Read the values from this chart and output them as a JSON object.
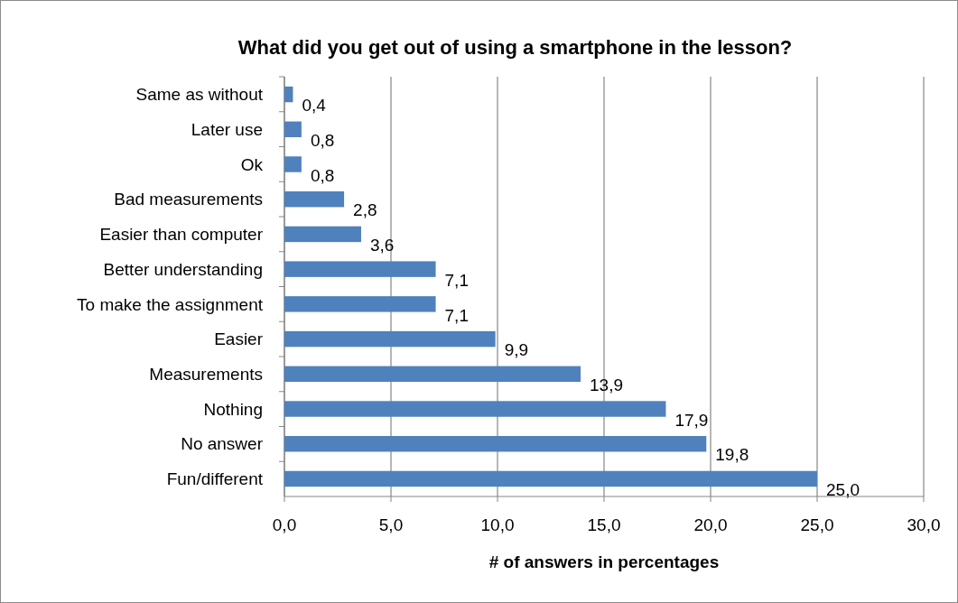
{
  "chart_data": {
    "type": "bar",
    "orientation": "horizontal",
    "title": "What did you get out of using a smartphone in the lesson?",
    "xlabel": "# of answers in percentages",
    "categories": [
      "Same as without",
      "Later use",
      "Ok",
      "Bad measurements",
      "Easier than computer",
      "Better understanding",
      "To make the assignment",
      "Easier",
      "Measurements",
      "Nothing",
      "No answer",
      "Fun/different"
    ],
    "values": [
      0.4,
      0.8,
      0.8,
      2.8,
      3.6,
      7.1,
      7.1,
      9.9,
      13.9,
      17.9,
      19.8,
      25.0
    ],
    "value_labels": [
      "0,4",
      "0,8",
      "0,8",
      "2,8",
      "3,6",
      "7,1",
      "7,1",
      "9,9",
      "13,9",
      "17,9",
      "19,8",
      "25,0"
    ],
    "color": "#4f81bd",
    "xlim": [
      0,
      30
    ],
    "xticks": [
      {
        "value": 0,
        "label": "0,0"
      },
      {
        "value": 5,
        "label": "5,0"
      },
      {
        "value": 10,
        "label": "10,0"
      },
      {
        "value": 15,
        "label": "15,0"
      },
      {
        "value": 20,
        "label": "20,0"
      },
      {
        "value": 25,
        "label": "25,0"
      },
      {
        "value": 30,
        "label": "30,0"
      }
    ],
    "grid": "x"
  }
}
